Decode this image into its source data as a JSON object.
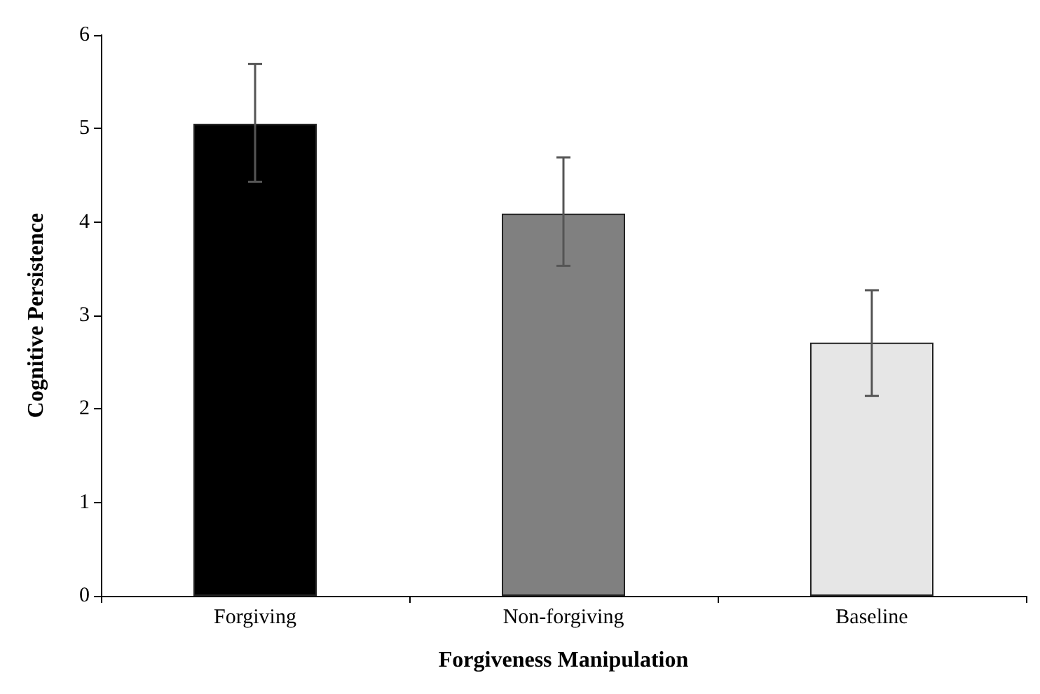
{
  "chart_data": {
    "type": "bar",
    "xlabel": "Forgiveness Manipulation",
    "ylabel": "Cognitive Persistence",
    "categories": [
      "Forgiving",
      "Non-forgiving",
      "Baseline"
    ],
    "values": [
      5.05,
      4.09,
      2.71
    ],
    "colors": [
      "#000000",
      "#808080",
      "#e6e6e6"
    ],
    "errors": [
      [
        4.43,
        5.69
      ],
      [
        3.53,
        4.69
      ],
      [
        2.14,
        3.27
      ]
    ],
    "ylim": [
      0,
      6
    ],
    "yticks": [
      0,
      1,
      2,
      3,
      4,
      5,
      6
    ],
    "grid": false
  }
}
